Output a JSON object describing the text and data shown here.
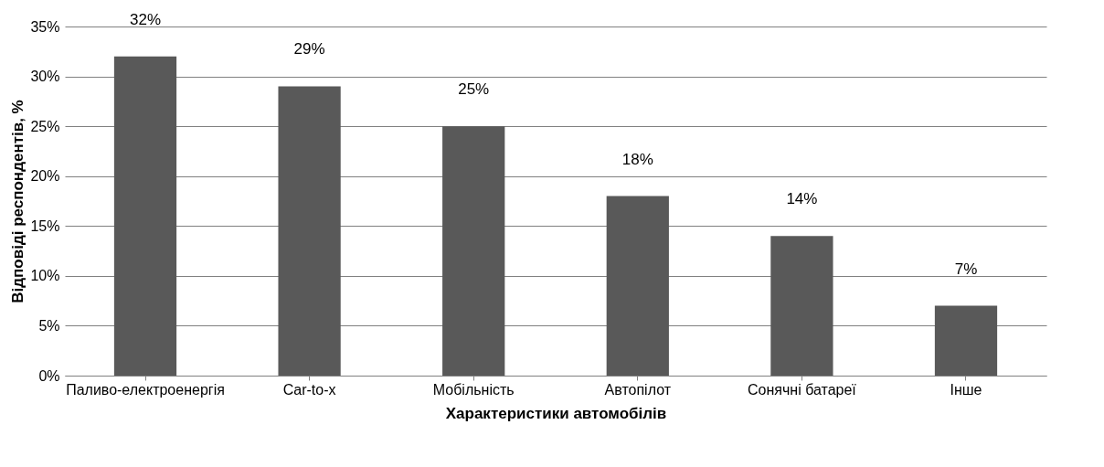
{
  "chart_data": {
    "type": "bar",
    "xlabel": "Характеристики автомобілів",
    "ylabel": "Відповіді респондентів, %",
    "categories": [
      "Паливо-електроенергія",
      "Car-to-x",
      "Мобільність",
      "Автопілот",
      "Сонячні батареї",
      "Інше"
    ],
    "values": [
      32,
      29,
      25,
      18,
      14,
      7
    ],
    "value_labels": [
      "32%",
      "29%",
      "25%",
      "18%",
      "14%",
      "7%"
    ],
    "color": "#595959",
    "ylim": [
      0,
      35
    ],
    "yticks": [
      {
        "value": 0,
        "label": "0%"
      },
      {
        "value": 5,
        "label": "5%"
      },
      {
        "value": 10,
        "label": "10%"
      },
      {
        "value": 15,
        "label": "15%"
      },
      {
        "value": 20,
        "label": "20%"
      },
      {
        "value": 25,
        "label": "25%"
      },
      {
        "value": 30,
        "label": "30%"
      },
      {
        "value": 35,
        "label": "35%"
      }
    ],
    "grid": "y"
  }
}
